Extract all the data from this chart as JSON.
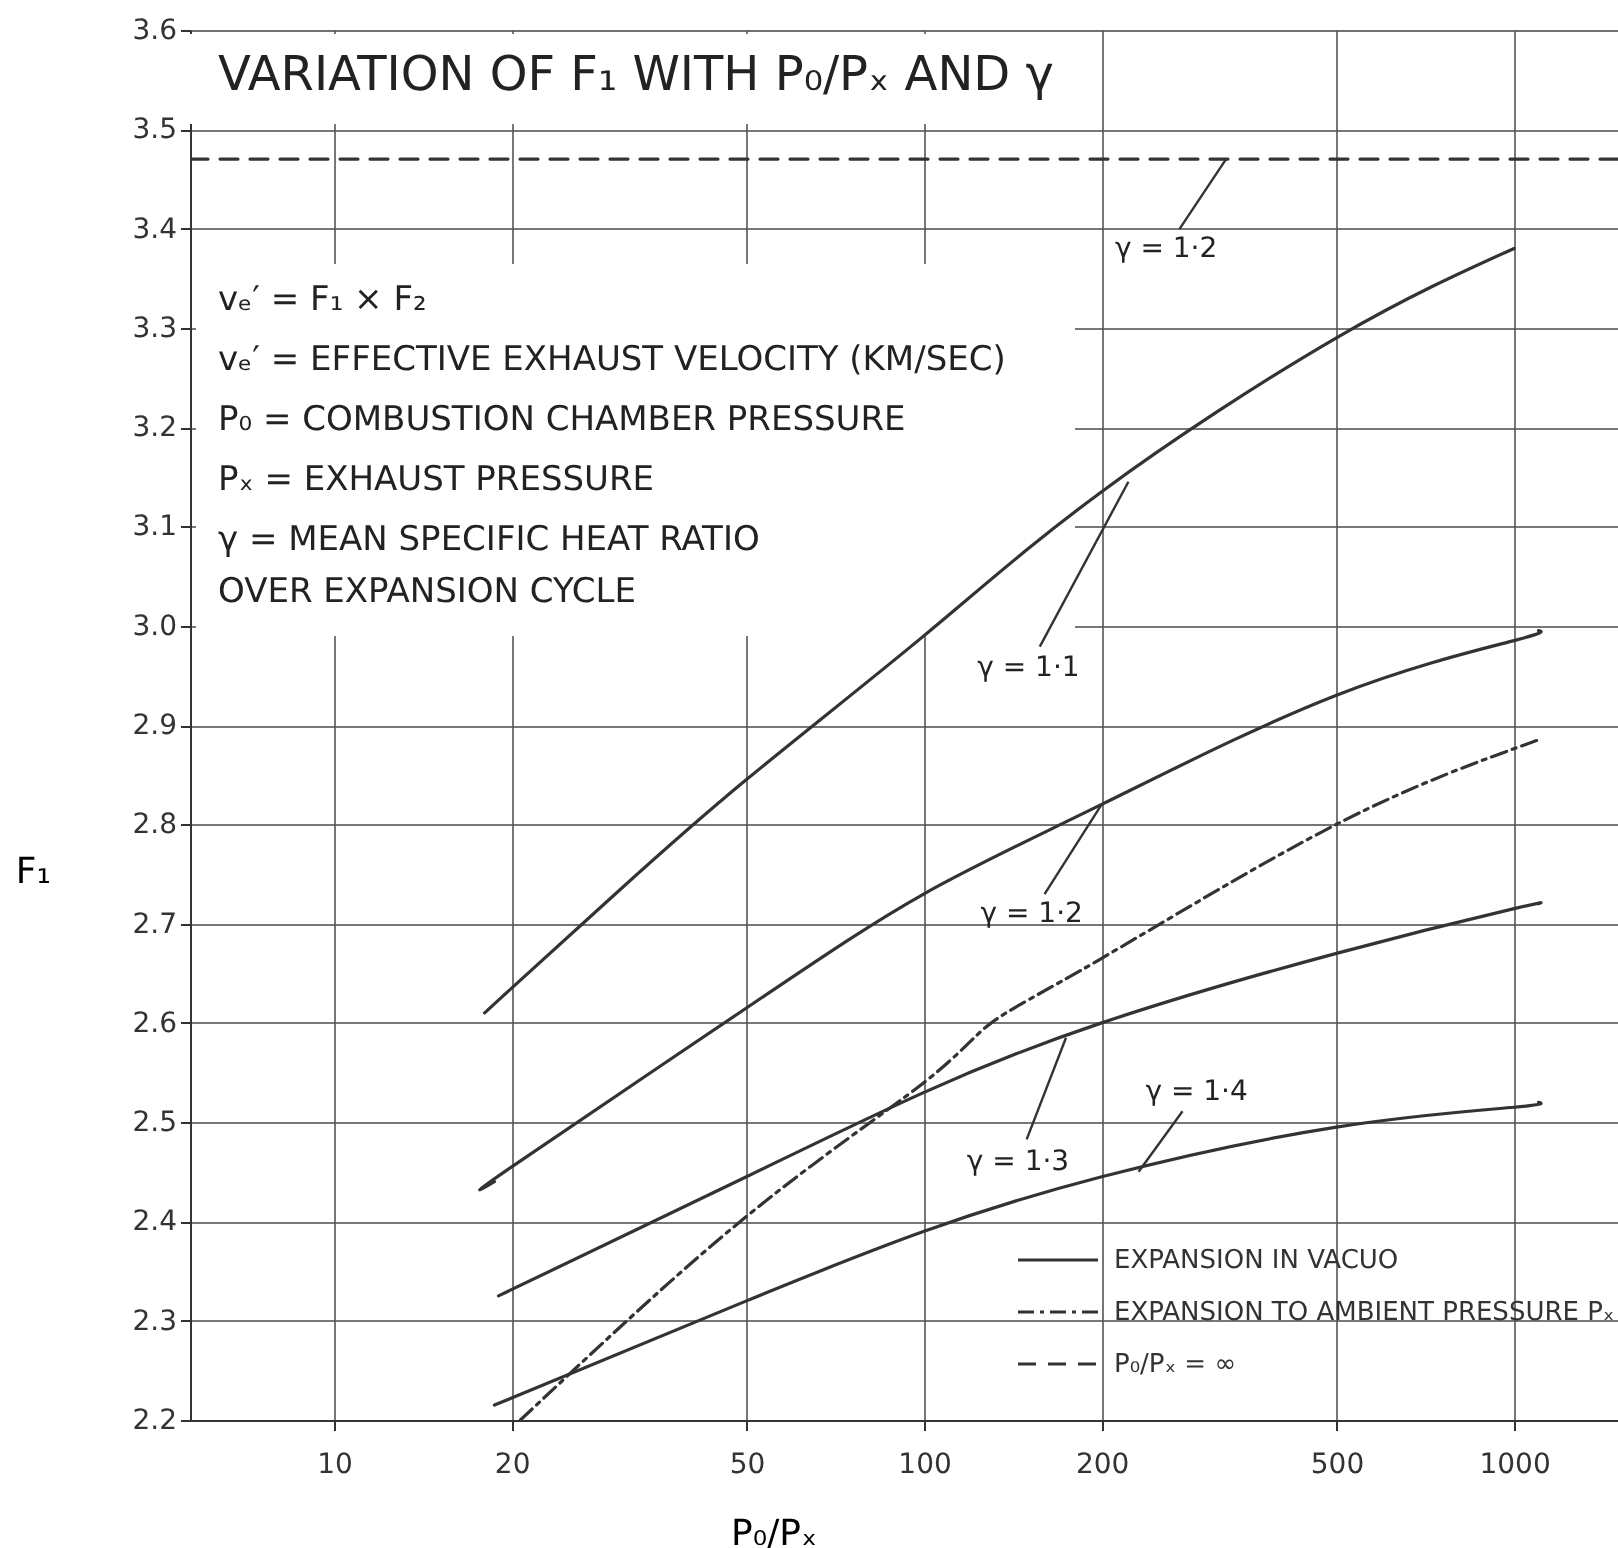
{
  "chart_data": {
    "type": "line",
    "title": "VARIATION OF F₁ WITH P₀/Pₓ AND γ",
    "xlabel": "P₀/Pₓ",
    "ylabel": "F₁",
    "log": "x",
    "grid": true,
    "legend": "bottom right",
    "xlim": [
      5.7,
      1500
    ],
    "xticks": [
      10,
      20,
      50,
      100,
      200,
      500,
      1000
    ],
    "ylim": [
      2.2,
      3.6
    ],
    "yticks": [
      2.2,
      2.3,
      2.4,
      2.5,
      2.6,
      2.7,
      2.8,
      2.9,
      {
        "value": 3.0,
        "label": "3.0"
      },
      3.1,
      3.2,
      3.3,
      3.4,
      3.5,
      3.6
    ],
    "series": [
      {
        "name": "EXPANSION IN VACUO",
        "color": "#333333",
        "line_style": "solid",
        "x": [
          18,
          20,
          30,
          50,
          100,
          200,
          500,
          1000
        ],
        "values": [
          2.61,
          2.635,
          2.73,
          2.845,
          2.99,
          3.135,
          3.29,
          3.38
        ]
      },
      {
        "color": "#333333",
        "line_style": "solid",
        "x": [
          18.7,
          20,
          50,
          100,
          200,
          500,
          1000,
          1100
        ],
        "values": [
          2.44,
          2.455,
          2.615,
          2.73,
          2.82,
          2.93,
          2.985,
          2.995
        ]
      },
      {
        "color": "#333333",
        "line_style": "solid",
        "x": [
          19,
          50,
          100,
          200,
          500,
          1000,
          1100
        ],
        "values": [
          2.325,
          2.445,
          2.53,
          2.6,
          2.67,
          2.715,
          2.72
        ]
      },
      {
        "color": "#333333",
        "line_style": "solid",
        "x": [
          18.7,
          50,
          100,
          200,
          500,
          1000,
          1100
        ],
        "values": [
          2.215,
          2.32,
          2.39,
          2.445,
          2.495,
          2.515,
          2.52
        ]
      },
      {
        "name": "EXPANSION TO AMBIENT PRESSURE Pₓ",
        "color": "#333333",
        "line_style": "dashdot",
        "x": [
          20.7,
          50,
          100,
          130,
          200,
          500,
          1100
        ],
        "values": [
          2.2,
          2.405,
          2.54,
          2.6,
          2.665,
          2.8,
          2.885
        ]
      },
      {
        "name": "P₀/Pₓ = ∞",
        "color": "#333333",
        "line_style": "dashed",
        "x": [
          5.7,
          1500
        ],
        "values": [
          3.47,
          3.47
        ]
      }
    ],
    "annotations": [
      {
        "text": "γ = 1·2",
        "x": 325,
        "y": 3.47
      },
      {
        "text": "γ = 1·1",
        "x": 222,
        "y": 3.145
      },
      {
        "text": "γ = 1·2",
        "x": 200,
        "y": 2.82
      },
      {
        "text": "γ = 1·3",
        "x": 174,
        "y": 2.585
      },
      {
        "text": "γ = 1·4",
        "x": 231,
        "y": 2.45
      },
      "vₑ′ = F₁ × F₂",
      "vₑ′ = EFFECTIVE EXHAUST VELOCITY (KM/SEC)",
      "P₀ = COMBUSTION CHAMBER PRESSURE",
      "Pₓ = EXHAUST PRESSURE",
      "γ = MEAN SPECIFIC HEAT RATIO\n      OVER EXPANSION CYCLE"
    ]
  }
}
